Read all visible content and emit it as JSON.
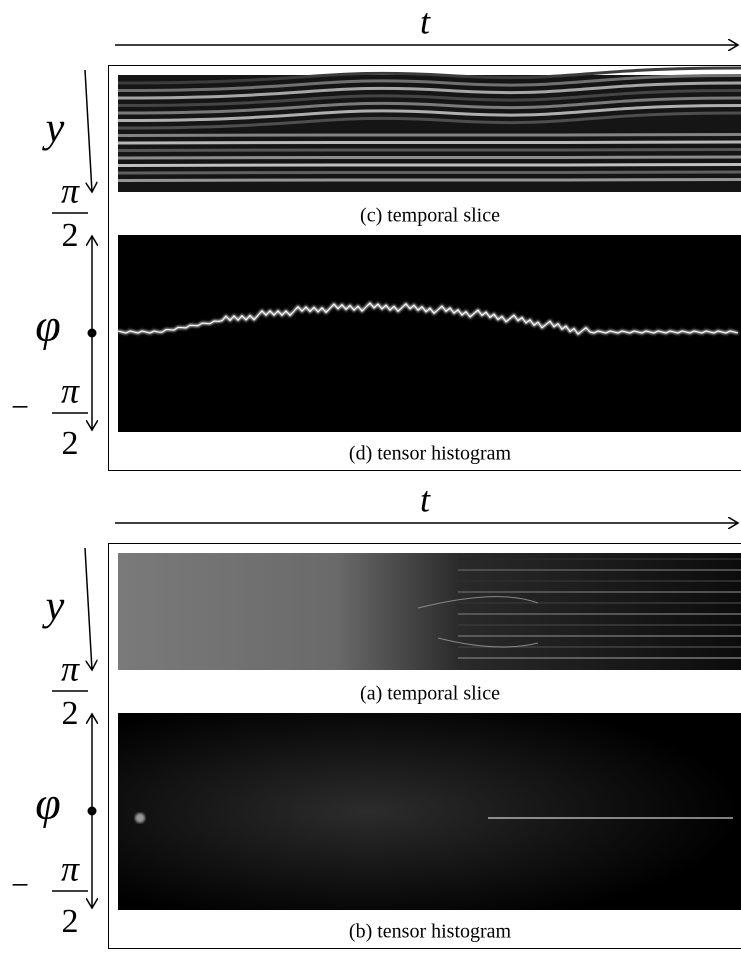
{
  "panels": [
    {
      "time_axis": "t",
      "slice_axis": "y",
      "angle_axis": "φ",
      "angle_top": {
        "numerator": "π",
        "denominator": "2"
      },
      "angle_bottom": {
        "sign": "−",
        "numerator": "π",
        "denominator": "2"
      },
      "slice_caption": "(c) temporal slice",
      "histogram_caption": "(d) tensor histogram"
    },
    {
      "time_axis": "t",
      "slice_axis": "y",
      "angle_axis": "φ",
      "angle_top": {
        "numerator": "π",
        "denominator": "2"
      },
      "angle_bottom": {
        "sign": "−",
        "numerator": "π",
        "denominator": "2"
      },
      "slice_caption": "(a) temporal slice",
      "histogram_caption": "(b) tensor histogram"
    }
  ]
}
